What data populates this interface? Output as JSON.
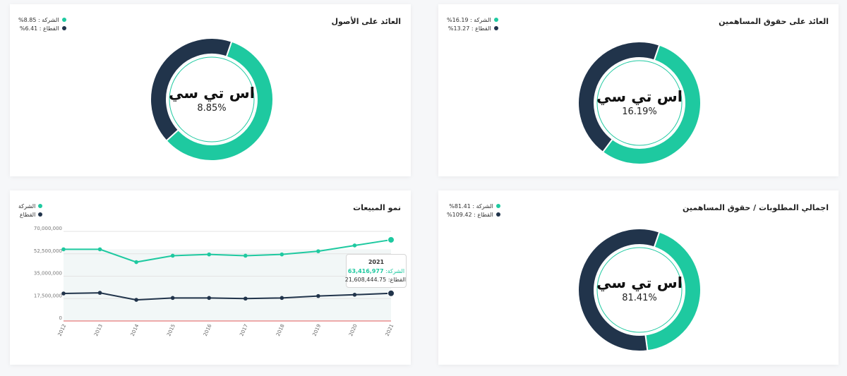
{
  "colors": {
    "company": "#1ec9a0",
    "sector": "#21344b",
    "zero_line": "#e35a5a"
  },
  "cards": {
    "roa": {
      "title": "العائد على الأصول",
      "legend": {
        "company": "الشركة : 8.85%",
        "sector": "القطاع : 6.41%"
      },
      "center_name": "اس تي سي",
      "center_value": "8.85%"
    },
    "roe": {
      "title": "العائد على حقوق المساهمين",
      "legend": {
        "company": "الشركة : 16.19%",
        "sector": "القطاع : 13.27%"
      },
      "center_name": "اس تي سي",
      "center_value": "16.19%"
    },
    "sales": {
      "title": "نمو المبيعات",
      "legend": {
        "company": "الشركة",
        "sector": "القطاع"
      },
      "tooltip": {
        "year": "2021",
        "company_label": "الشركة:",
        "company_value": "63,416,977",
        "sector_label": "القطاع:",
        "sector_value": "21,608,444.75"
      }
    },
    "liab": {
      "title": "اجمالي المطلوبات / حقوق المساهمين",
      "legend": {
        "company": "الشركة : 81.41%",
        "sector": "القطاع : 109.42%"
      },
      "center_name": "اس تي سي",
      "center_value": "81.41%"
    }
  },
  "chart_data": [
    {
      "type": "pie",
      "title": "العائد على الأصول",
      "labels": [
        "الشركة",
        "القطاع"
      ],
      "values": [
        8.85,
        6.41
      ]
    },
    {
      "type": "pie",
      "title": "العائد على حقوق المساهمين",
      "labels": [
        "الشركة",
        "القطاع"
      ],
      "values": [
        16.19,
        13.27
      ]
    },
    {
      "type": "line",
      "title": "نمو المبيعات",
      "categories": [
        "2012",
        "2013",
        "2014",
        "2015",
        "2016",
        "2017",
        "2018",
        "2019",
        "2020",
        "2021"
      ],
      "series": [
        {
          "name": "الشركة",
          "values": [
            56000000,
            56000000,
            46000000,
            51000000,
            52000000,
            51000000,
            52000000,
            54500000,
            59000000,
            63416977
          ]
        },
        {
          "name": "القطاع",
          "values": [
            21500000,
            22000000,
            16500000,
            18000000,
            18000000,
            17500000,
            18000000,
            19500000,
            20500000,
            21608444.75
          ]
        }
      ],
      "ylim": [
        0,
        70000000
      ],
      "yticks": [
        "0",
        "17,500,000",
        "35,000,000",
        "52,500,000",
        "70,000,000"
      ]
    },
    {
      "type": "pie",
      "title": "اجمالي المطلوبات / حقوق المساهمين",
      "labels": [
        "الشركة",
        "القطاع"
      ],
      "values": [
        81.41,
        109.42
      ]
    }
  ]
}
